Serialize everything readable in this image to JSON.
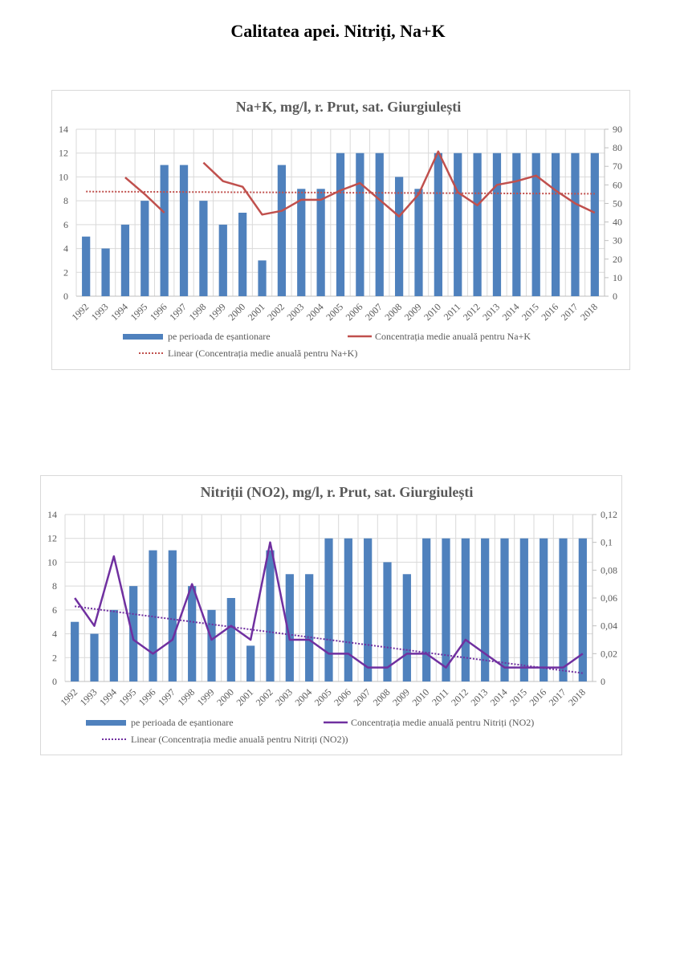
{
  "page": {
    "title": "Calitatea apei. Nitriți, Na+K"
  },
  "chart_data": [
    {
      "type": "bar",
      "title": "Na+K, mg/l, r. Prut, sat. Giurgiulești",
      "xlabel": "",
      "ylabel": "",
      "categories": [
        "1992",
        "1993",
        "1994",
        "1995",
        "1996",
        "1997",
        "1998",
        "1999",
        "2000",
        "2001",
        "2002",
        "2003",
        "2004",
        "2005",
        "2006",
        "2007",
        "2008",
        "2009",
        "2010",
        "2011",
        "2012",
        "2013",
        "2014",
        "2015",
        "2016",
        "2017",
        "2018"
      ],
      "ylim": [
        0,
        14
      ],
      "y_ticks": [
        "0",
        "2",
        "4",
        "6",
        "8",
        "10",
        "12",
        "14"
      ],
      "y2lim": [
        0,
        90
      ],
      "y2_ticks": [
        "0",
        "10",
        "20",
        "30",
        "40",
        "50",
        "60",
        "70",
        "80",
        "90"
      ],
      "grid": true,
      "legend_position": "bottom",
      "series": [
        {
          "name": "pe perioada de eșantionare",
          "type": "bar",
          "axis": "left",
          "color": "#4f81bd",
          "values": [
            5,
            4,
            6,
            8,
            11,
            11,
            8,
            6,
            7,
            3,
            11,
            9,
            9,
            12,
            12,
            12,
            10,
            9,
            12,
            12,
            12,
            12,
            12,
            12,
            12,
            12,
            12
          ]
        },
        {
          "name": "Concentrația medie anuală pentru Na+K",
          "type": "line",
          "axis": "right",
          "color": "#c0504d",
          "values": [
            null,
            null,
            64,
            55,
            45,
            null,
            72,
            62,
            59,
            44,
            46,
            52,
            52,
            57,
            61,
            52,
            43,
            55,
            78,
            56,
            49,
            60,
            62,
            65,
            57,
            50,
            45
          ]
        },
        {
          "name": "Linear (Concentrația medie anuală pentru Na+K)",
          "type": "trendline",
          "axis": "right",
          "color": "#c0504d",
          "values_start_end": [
            56.4,
            55.2
          ]
        }
      ]
    },
    {
      "type": "bar",
      "title": "Nitriții (NO2), mg/l, r. Prut, sat. Giurgiulești",
      "xlabel": "",
      "ylabel": "",
      "categories": [
        "1992",
        "1993",
        "1994",
        "1995",
        "1996",
        "1997",
        "1998",
        "1999",
        "2000",
        "2001",
        "2002",
        "2003",
        "2004",
        "2005",
        "2006",
        "2007",
        "2008",
        "2009",
        "2010",
        "2011",
        "2012",
        "2013",
        "2014",
        "2015",
        "2016",
        "2017",
        "2018"
      ],
      "ylim": [
        0,
        14
      ],
      "y_ticks": [
        "0",
        "2",
        "4",
        "6",
        "8",
        "10",
        "12",
        "14"
      ],
      "y2lim": [
        0,
        0.12
      ],
      "y2_ticks": [
        "0",
        "0,02",
        "0,04",
        "0,06",
        "0,08",
        "0,1",
        "0,12"
      ],
      "grid": true,
      "legend_position": "bottom",
      "series": [
        {
          "name": "pe perioada de eșantionare",
          "type": "bar",
          "axis": "left",
          "color": "#4f81bd",
          "values": [
            5,
            4,
            6,
            8,
            11,
            11,
            8,
            6,
            7,
            3,
            11,
            9,
            9,
            12,
            12,
            12,
            10,
            9,
            12,
            12,
            12,
            12,
            12,
            12,
            12,
            12,
            12
          ]
        },
        {
          "name": "Concentrația medie anuală pentru Nitriți (NO2)",
          "type": "line",
          "axis": "right",
          "color": "#7030a0",
          "values": [
            0.06,
            0.04,
            0.09,
            0.03,
            0.02,
            0.03,
            0.07,
            0.03,
            0.04,
            0.03,
            0.1,
            0.03,
            0.03,
            0.02,
            0.02,
            0.01,
            0.01,
            0.02,
            0.02,
            0.01,
            0.03,
            0.02,
            0.01,
            0.01,
            0.01,
            0.01,
            0.02
          ]
        },
        {
          "name": "Linear (Concentrația medie anuală pentru Nitriți (NO2))",
          "type": "trendline",
          "axis": "right",
          "color": "#7030a0",
          "values_start_end": [
            0.054,
            0.006
          ]
        }
      ]
    }
  ]
}
